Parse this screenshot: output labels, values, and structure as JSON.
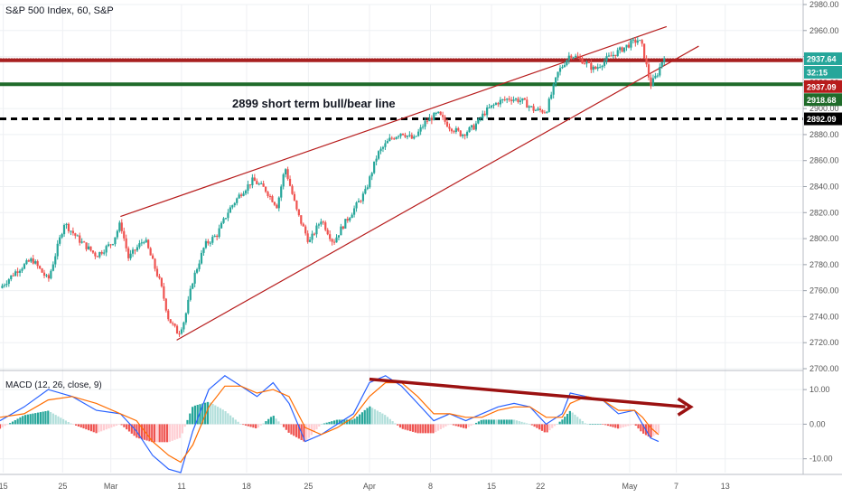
{
  "chart_data": {
    "type": "candlestick",
    "title": "S&P 500 Index, 60, S&P",
    "main": {
      "ylim": [
        2700,
        2980
      ],
      "y_ticks": [
        "2980.00",
        "2960.00",
        "2940.00",
        "2920.00",
        "2900.00",
        "2880.00",
        "2860.00",
        "2840.00",
        "2820.00",
        "2800.00",
        "2780.00",
        "2760.00",
        "2740.00",
        "2720.00",
        "2700.00"
      ],
      "grid": true,
      "annotation": "2899 short term bull/bear line",
      "hlines": [
        {
          "value": 2937.64,
          "label": "2937.64",
          "color": "#8b1a1a",
          "style": "dotted"
        },
        {
          "value": 2937.09,
          "label": "2937.09",
          "color": "#a82020",
          "style": "solid"
        },
        {
          "value": 2918.68,
          "label": "2918.68",
          "color": "#1f6b2a",
          "style": "solid"
        },
        {
          "value": 2892.09,
          "label": "2892.09",
          "color": "#000000",
          "style": "dashed"
        }
      ],
      "countdown": "32:15",
      "channel": {
        "upper": [
          [
            0.15,
            2817
          ],
          [
            0.83,
            2963
          ]
        ],
        "lower": [
          [
            0.22,
            2722
          ],
          [
            0.87,
            2948
          ]
        ]
      },
      "price_path": [
        [
          0.0,
          2762
        ],
        [
          0.02,
          2775
        ],
        [
          0.04,
          2784
        ],
        [
          0.06,
          2768
        ],
        [
          0.08,
          2812
        ],
        [
          0.1,
          2798
        ],
        [
          0.12,
          2787
        ],
        [
          0.14,
          2797
        ],
        [
          0.15,
          2812
        ],
        [
          0.16,
          2785
        ],
        [
          0.18,
          2800
        ],
        [
          0.2,
          2765
        ],
        [
          0.21,
          2738
        ],
        [
          0.222,
          2727
        ],
        [
          0.23,
          2738
        ],
        [
          0.24,
          2768
        ],
        [
          0.255,
          2795
        ],
        [
          0.27,
          2803
        ],
        [
          0.285,
          2822
        ],
        [
          0.3,
          2835
        ],
        [
          0.315,
          2845
        ],
        [
          0.33,
          2838
        ],
        [
          0.345,
          2825
        ],
        [
          0.355,
          2855
        ],
        [
          0.37,
          2820
        ],
        [
          0.385,
          2797
        ],
        [
          0.4,
          2815
        ],
        [
          0.415,
          2797
        ],
        [
          0.425,
          2808
        ],
        [
          0.44,
          2822
        ],
        [
          0.455,
          2836
        ],
        [
          0.47,
          2865
        ],
        [
          0.485,
          2876
        ],
        [
          0.5,
          2882
        ],
        [
          0.515,
          2876
        ],
        [
          0.53,
          2890
        ],
        [
          0.545,
          2896
        ],
        [
          0.56,
          2886
        ],
        [
          0.575,
          2880
        ],
        [
          0.59,
          2886
        ],
        [
          0.605,
          2898
        ],
        [
          0.62,
          2905
        ],
        [
          0.635,
          2908
        ],
        [
          0.65,
          2906
        ],
        [
          0.665,
          2899
        ],
        [
          0.68,
          2898
        ],
        [
          0.695,
          2928
        ],
        [
          0.71,
          2942
        ],
        [
          0.725,
          2937
        ],
        [
          0.74,
          2930
        ],
        [
          0.755,
          2938
        ],
        [
          0.77,
          2944
        ],
        [
          0.785,
          2950
        ],
        [
          0.795,
          2953
        ],
        [
          0.8,
          2947
        ],
        [
          0.81,
          2918
        ],
        [
          0.818,
          2926
        ],
        [
          0.827,
          2941
        ]
      ]
    },
    "macd": {
      "label": "MACD (12, 26, close, 9)",
      "ylim": [
        -14,
        15
      ],
      "y_ticks": [
        "10.00",
        "0.00",
        "-10.00"
      ],
      "arrow_annotation": {
        "from": [
          0.46,
          13
        ],
        "to": [
          0.86,
          5
        ]
      },
      "macd_path": [
        [
          0.0,
          1
        ],
        [
          0.03,
          5
        ],
        [
          0.06,
          10
        ],
        [
          0.09,
          8
        ],
        [
          0.12,
          4
        ],
        [
          0.15,
          3
        ],
        [
          0.17,
          -2
        ],
        [
          0.19,
          -9
        ],
        [
          0.21,
          -13
        ],
        [
          0.225,
          -14
        ],
        [
          0.24,
          -2
        ],
        [
          0.26,
          10
        ],
        [
          0.28,
          14
        ],
        [
          0.3,
          11
        ],
        [
          0.32,
          8
        ],
        [
          0.34,
          12
        ],
        [
          0.36,
          6
        ],
        [
          0.38,
          -5
        ],
        [
          0.4,
          -3
        ],
        [
          0.42,
          0
        ],
        [
          0.44,
          3
        ],
        [
          0.46,
          12
        ],
        [
          0.48,
          14
        ],
        [
          0.5,
          11
        ],
        [
          0.52,
          6
        ],
        [
          0.54,
          1
        ],
        [
          0.56,
          3
        ],
        [
          0.58,
          1
        ],
        [
          0.6,
          3
        ],
        [
          0.62,
          5
        ],
        [
          0.64,
          6
        ],
        [
          0.66,
          5
        ],
        [
          0.68,
          0
        ],
        [
          0.7,
          3
        ],
        [
          0.71,
          9
        ],
        [
          0.73,
          8
        ],
        [
          0.75,
          7
        ],
        [
          0.77,
          3
        ],
        [
          0.79,
          4
        ],
        [
          0.8,
          0
        ],
        [
          0.81,
          -4
        ],
        [
          0.82,
          -5
        ]
      ],
      "signal_path": [
        [
          0.0,
          2
        ],
        [
          0.03,
          3
        ],
        [
          0.06,
          7
        ],
        [
          0.09,
          8
        ],
        [
          0.12,
          6
        ],
        [
          0.15,
          3
        ],
        [
          0.17,
          1
        ],
        [
          0.19,
          -5
        ],
        [
          0.21,
          -9
        ],
        [
          0.225,
          -11
        ],
        [
          0.24,
          -6
        ],
        [
          0.26,
          5
        ],
        [
          0.28,
          11
        ],
        [
          0.3,
          11
        ],
        [
          0.32,
          9
        ],
        [
          0.34,
          10
        ],
        [
          0.36,
          8
        ],
        [
          0.38,
          -1
        ],
        [
          0.4,
          -3
        ],
        [
          0.42,
          -1
        ],
        [
          0.44,
          2
        ],
        [
          0.46,
          8
        ],
        [
          0.48,
          12
        ],
        [
          0.5,
          12
        ],
        [
          0.52,
          8
        ],
        [
          0.54,
          3
        ],
        [
          0.56,
          3
        ],
        [
          0.58,
          2
        ],
        [
          0.6,
          2
        ],
        [
          0.62,
          4
        ],
        [
          0.64,
          5
        ],
        [
          0.66,
          5
        ],
        [
          0.68,
          2
        ],
        [
          0.7,
          2
        ],
        [
          0.71,
          6
        ],
        [
          0.73,
          8
        ],
        [
          0.75,
          7
        ],
        [
          0.77,
          4
        ],
        [
          0.79,
          4
        ],
        [
          0.8,
          2
        ],
        [
          0.81,
          -1
        ],
        [
          0.82,
          -3
        ]
      ]
    },
    "x_ticks": [
      {
        "label": "15",
        "pos": 0.004
      },
      {
        "label": "25",
        "pos": 0.078
      },
      {
        "label": "Mar",
        "pos": 0.138
      },
      {
        "label": "11",
        "pos": 0.226
      },
      {
        "label": "18",
        "pos": 0.307
      },
      {
        "label": "25",
        "pos": 0.384
      },
      {
        "label": "Apr",
        "pos": 0.46
      },
      {
        "label": "8",
        "pos": 0.536
      },
      {
        "label": "15",
        "pos": 0.612
      },
      {
        "label": "22",
        "pos": 0.673
      },
      {
        "label": "May",
        "pos": 0.784
      },
      {
        "label": "7",
        "pos": 0.842
      },
      {
        "label": "13",
        "pos": 0.903
      }
    ],
    "colors": {
      "up": "#26a69a",
      "down": "#ef5350",
      "up_hist": "#26a69a",
      "down_hist": "#ef5350",
      "macd_line": "#2962ff",
      "signal_line": "#ff6d00",
      "channel": "#b71c1c",
      "arrow": "#9b1111",
      "grid": "#eef0f3"
    }
  }
}
